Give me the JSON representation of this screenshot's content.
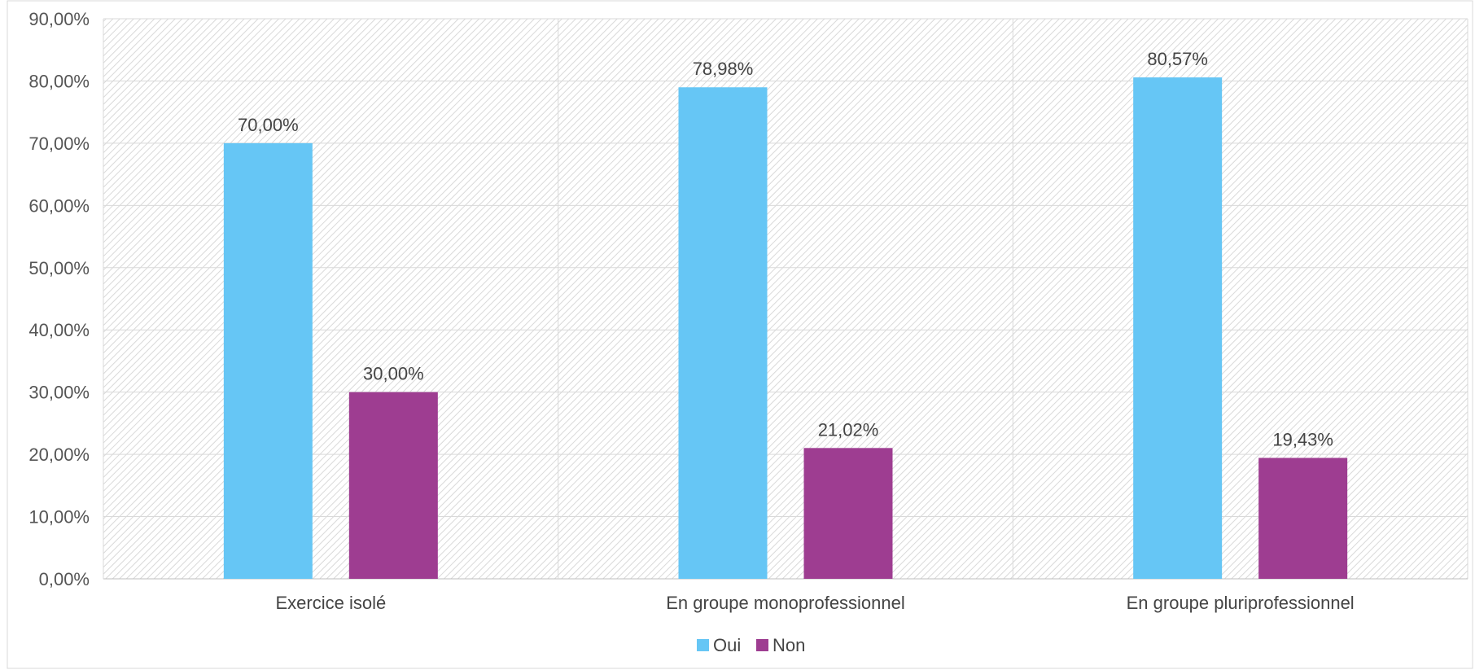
{
  "chart_data": {
    "type": "bar",
    "title": "",
    "xlabel": "",
    "ylabel": "",
    "categories": [
      "Exercice isolé",
      "En groupe monoprofessionnel",
      "En groupe pluriprofessionnel"
    ],
    "series": [
      {
        "name": "Oui",
        "color": "#66C6F5",
        "values": [
          70.0,
          78.98,
          80.57
        ],
        "labels": [
          "70,00%",
          "78,98%",
          "80,57%"
        ]
      },
      {
        "name": "Non",
        "color": "#9E3D91",
        "values": [
          30.0,
          21.02,
          19.43
        ],
        "labels": [
          "30,00%",
          "21,02%",
          "19,43%"
        ]
      }
    ],
    "ylim": [
      0,
      90
    ],
    "yticks": [
      0,
      10,
      20,
      30,
      40,
      50,
      60,
      70,
      80,
      90
    ],
    "ytick_labels": [
      "0,00%",
      "10,00%",
      "20,00%",
      "30,00%",
      "40,00%",
      "50,00%",
      "60,00%",
      "70,00%",
      "80,00%",
      "90,00%"
    ],
    "grid": true,
    "legend_position": "bottom",
    "plot_background": "hatched"
  }
}
